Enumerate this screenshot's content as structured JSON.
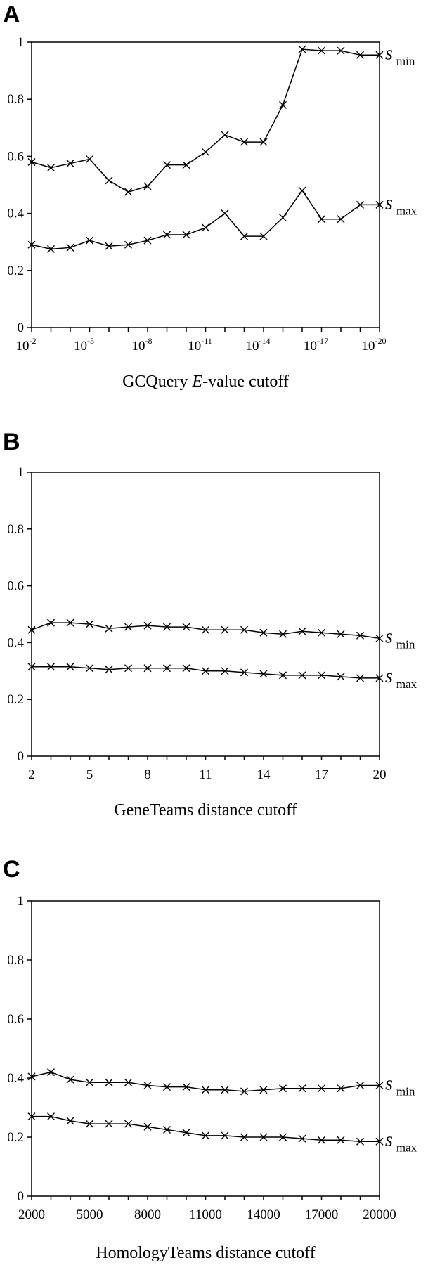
{
  "chart_data": [
    {
      "panel": "A",
      "type": "line",
      "xlabel_parts": [
        "GCQuery ",
        "E",
        "-value cutoff"
      ],
      "ylim": [
        0,
        1
      ],
      "yticks": [
        "0",
        "0.2",
        "0.4",
        "0.6",
        "0.8",
        "1"
      ],
      "xtick_labels": [
        "10",
        "10",
        "10",
        "10",
        "10",
        "10",
        "10"
      ],
      "xtick_exponents": [
        "-2",
        "-5",
        "-8",
        "-11",
        "-14",
        "-17",
        "-20"
      ],
      "x": [
        -2,
        -3,
        -4,
        -5,
        -6,
        -7,
        -8,
        -9,
        -10,
        -11,
        -12,
        -13,
        -14,
        -15,
        -16,
        -17,
        -18,
        -19,
        -20
      ],
      "xlim": [
        -2,
        -20
      ],
      "series": [
        {
          "name": "s",
          "subscript": "min",
          "values": [
            0.58,
            0.56,
            0.575,
            0.59,
            0.515,
            0.475,
            0.495,
            0.57,
            0.57,
            0.615,
            0.675,
            0.65,
            0.65,
            0.78,
            0.975,
            0.97,
            0.97,
            0.955,
            0.955
          ]
        },
        {
          "name": "s",
          "subscript": "max",
          "values": [
            0.29,
            0.275,
            0.28,
            0.305,
            0.285,
            0.29,
            0.305,
            0.325,
            0.325,
            0.35,
            0.4,
            0.32,
            0.32,
            0.385,
            0.48,
            0.38,
            0.38,
            0.43,
            0.43
          ]
        }
      ]
    },
    {
      "panel": "B",
      "type": "line",
      "xlabel_parts": [
        "GeneTeams distance cutoff"
      ],
      "ylim": [
        0,
        1
      ],
      "yticks": [
        "0",
        "0.2",
        "0.4",
        "0.6",
        "0.8",
        "1"
      ],
      "xtick_labels": [
        "2",
        "5",
        "8",
        "11",
        "14",
        "17",
        "20"
      ],
      "xtick_exponents": [],
      "x": [
        2,
        3,
        4,
        5,
        6,
        7,
        8,
        9,
        10,
        11,
        12,
        13,
        14,
        15,
        16,
        17,
        18,
        19,
        20
      ],
      "xlim": [
        2,
        20
      ],
      "series": [
        {
          "name": "s",
          "subscript": "min",
          "values": [
            0.445,
            0.47,
            0.47,
            0.465,
            0.45,
            0.455,
            0.46,
            0.455,
            0.455,
            0.445,
            0.445,
            0.445,
            0.435,
            0.43,
            0.44,
            0.435,
            0.43,
            0.425,
            0.415
          ]
        },
        {
          "name": "s",
          "subscript": "max",
          "values": [
            0.315,
            0.315,
            0.315,
            0.31,
            0.305,
            0.31,
            0.31,
            0.31,
            0.31,
            0.3,
            0.3,
            0.295,
            0.29,
            0.285,
            0.285,
            0.285,
            0.28,
            0.275,
            0.275
          ]
        }
      ]
    },
    {
      "panel": "C",
      "type": "line",
      "xlabel_parts": [
        "HomologyTeams distance cutoff"
      ],
      "ylim": [
        0,
        1
      ],
      "yticks": [
        "0",
        "0.2",
        "0.4",
        "0.6",
        "0.8",
        "1"
      ],
      "xtick_labels": [
        "2000",
        "5000",
        "8000",
        "11000",
        "14000",
        "17000",
        "20000"
      ],
      "xtick_exponents": [],
      "x": [
        2000,
        3000,
        4000,
        5000,
        6000,
        7000,
        8000,
        9000,
        10000,
        11000,
        12000,
        13000,
        14000,
        15000,
        16000,
        17000,
        18000,
        19000,
        20000
      ],
      "xlim": [
        2000,
        20000
      ],
      "series": [
        {
          "name": "s",
          "subscript": "min",
          "values": [
            0.405,
            0.42,
            0.395,
            0.385,
            0.385,
            0.385,
            0.375,
            0.37,
            0.37,
            0.36,
            0.36,
            0.355,
            0.36,
            0.365,
            0.365,
            0.365,
            0.365,
            0.375,
            0.375
          ]
        },
        {
          "name": "s",
          "subscript": "max",
          "values": [
            0.27,
            0.27,
            0.255,
            0.245,
            0.245,
            0.245,
            0.235,
            0.225,
            0.215,
            0.205,
            0.205,
            0.2,
            0.2,
            0.2,
            0.195,
            0.19,
            0.19,
            0.185,
            0.185
          ]
        }
      ]
    }
  ]
}
